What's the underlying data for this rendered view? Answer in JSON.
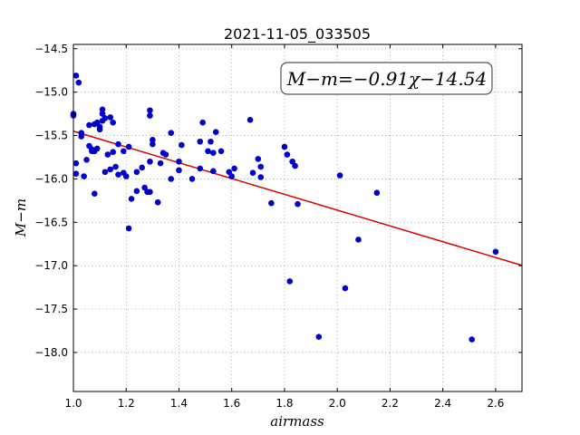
{
  "chart_data": {
    "type": "scatter",
    "title": "2021-11-05_033505",
    "xlabel": "airmass",
    "ylabel": "M−m",
    "xlim": [
      1.0,
      2.7
    ],
    "ylim": [
      -14.45,
      -18.45
    ],
    "y_inverted": true,
    "x_ticks": [
      1.0,
      1.2,
      1.4,
      1.6,
      1.8,
      2.0,
      2.2,
      2.4,
      2.6
    ],
    "x_tick_labels": [
      "1.0",
      "1.2",
      "1.4",
      "1.6",
      "1.8",
      "2.0",
      "2.2",
      "2.4",
      "2.6"
    ],
    "y_ticks": [
      -14.5,
      -15.0,
      -15.5,
      -16.0,
      -16.5,
      -17.0,
      -17.5,
      -18.0
    ],
    "y_tick_labels": [
      "−14.5",
      "−15.0",
      "−15.5",
      "−16.0",
      "−16.5",
      "−17.0",
      "−17.5",
      "−18.0"
    ],
    "grid": true,
    "annotation": "M−m=−0.91χ−14.54",
    "colors": {
      "points": "#0000cc",
      "fit": "#dd0000",
      "grid": "#999999"
    },
    "fit_line": {
      "slope": -0.91,
      "intercept": -14.54,
      "x": [
        1.0,
        2.7
      ]
    },
    "points": [
      [
        1.0,
        -15.27
      ],
      [
        1.0,
        -15.25
      ],
      [
        1.01,
        -15.82
      ],
      [
        1.01,
        -15.94
      ],
      [
        1.01,
        -14.81
      ],
      [
        1.02,
        -14.89
      ],
      [
        1.03,
        -15.47
      ],
      [
        1.03,
        -15.51
      ],
      [
        1.04,
        -15.97
      ],
      [
        1.05,
        -15.78
      ],
      [
        1.06,
        -15.62
      ],
      [
        1.06,
        -15.38
      ],
      [
        1.07,
        -15.66
      ],
      [
        1.07,
        -15.68
      ],
      [
        1.08,
        -15.37
      ],
      [
        1.08,
        -15.68
      ],
      [
        1.08,
        -16.17
      ],
      [
        1.09,
        -15.35
      ],
      [
        1.09,
        -15.65
      ],
      [
        1.1,
        -15.4
      ],
      [
        1.1,
        -15.43
      ],
      [
        1.11,
        -15.2
      ],
      [
        1.11,
        -15.25
      ],
      [
        1.11,
        -15.33
      ],
      [
        1.12,
        -15.92
      ],
      [
        1.12,
        -15.3
      ],
      [
        1.13,
        -15.72
      ],
      [
        1.14,
        -15.89
      ],
      [
        1.14,
        -15.29
      ],
      [
        1.15,
        -15.69
      ],
      [
        1.15,
        -15.35
      ],
      [
        1.16,
        -15.86
      ],
      [
        1.17,
        -15.95
      ],
      [
        1.17,
        -15.6
      ],
      [
        1.19,
        -15.68
      ],
      [
        1.19,
        -15.93
      ],
      [
        1.2,
        -15.97
      ],
      [
        1.21,
        -15.63
      ],
      [
        1.21,
        -16.57
      ],
      [
        1.22,
        -16.23
      ],
      [
        1.24,
        -16.14
      ],
      [
        1.24,
        -15.92
      ],
      [
        1.26,
        -15.87
      ],
      [
        1.27,
        -16.1
      ],
      [
        1.28,
        -16.15
      ],
      [
        1.29,
        -16.15
      ],
      [
        1.29,
        -15.8
      ],
      [
        1.29,
        -15.21
      ],
      [
        1.29,
        -15.27
      ],
      [
        1.3,
        -15.55
      ],
      [
        1.3,
        -15.6
      ],
      [
        1.32,
        -16.27
      ],
      [
        1.33,
        -15.82
      ],
      [
        1.34,
        -15.7
      ],
      [
        1.35,
        -15.72
      ],
      [
        1.37,
        -16.0
      ],
      [
        1.37,
        -15.47
      ],
      [
        1.4,
        -15.9
      ],
      [
        1.4,
        -15.8
      ],
      [
        1.41,
        -15.61
      ],
      [
        1.45,
        -16.0
      ],
      [
        1.48,
        -15.88
      ],
      [
        1.48,
        -15.57
      ],
      [
        1.49,
        -15.35
      ],
      [
        1.51,
        -15.68
      ],
      [
        1.52,
        -15.57
      ],
      [
        1.53,
        -15.7
      ],
      [
        1.53,
        -15.91
      ],
      [
        1.54,
        -15.46
      ],
      [
        1.56,
        -15.68
      ],
      [
        1.59,
        -15.92
      ],
      [
        1.6,
        -15.97
      ],
      [
        1.61,
        -15.88
      ],
      [
        1.67,
        -15.32
      ],
      [
        1.68,
        -15.93
      ],
      [
        1.7,
        -15.77
      ],
      [
        1.71,
        -15.86
      ],
      [
        1.71,
        -15.98
      ],
      [
        1.75,
        -16.28
      ],
      [
        1.8,
        -15.63
      ],
      [
        1.81,
        -15.72
      ],
      [
        1.82,
        -17.18
      ],
      [
        1.83,
        -15.8
      ],
      [
        1.84,
        -15.85
      ],
      [
        1.85,
        -16.29
      ],
      [
        1.93,
        -17.82
      ],
      [
        2.01,
        -15.96
      ],
      [
        2.03,
        -17.26
      ],
      [
        2.08,
        -16.7
      ],
      [
        2.15,
        -16.16
      ],
      [
        2.51,
        -17.85
      ],
      [
        2.6,
        -16.84
      ]
    ]
  }
}
